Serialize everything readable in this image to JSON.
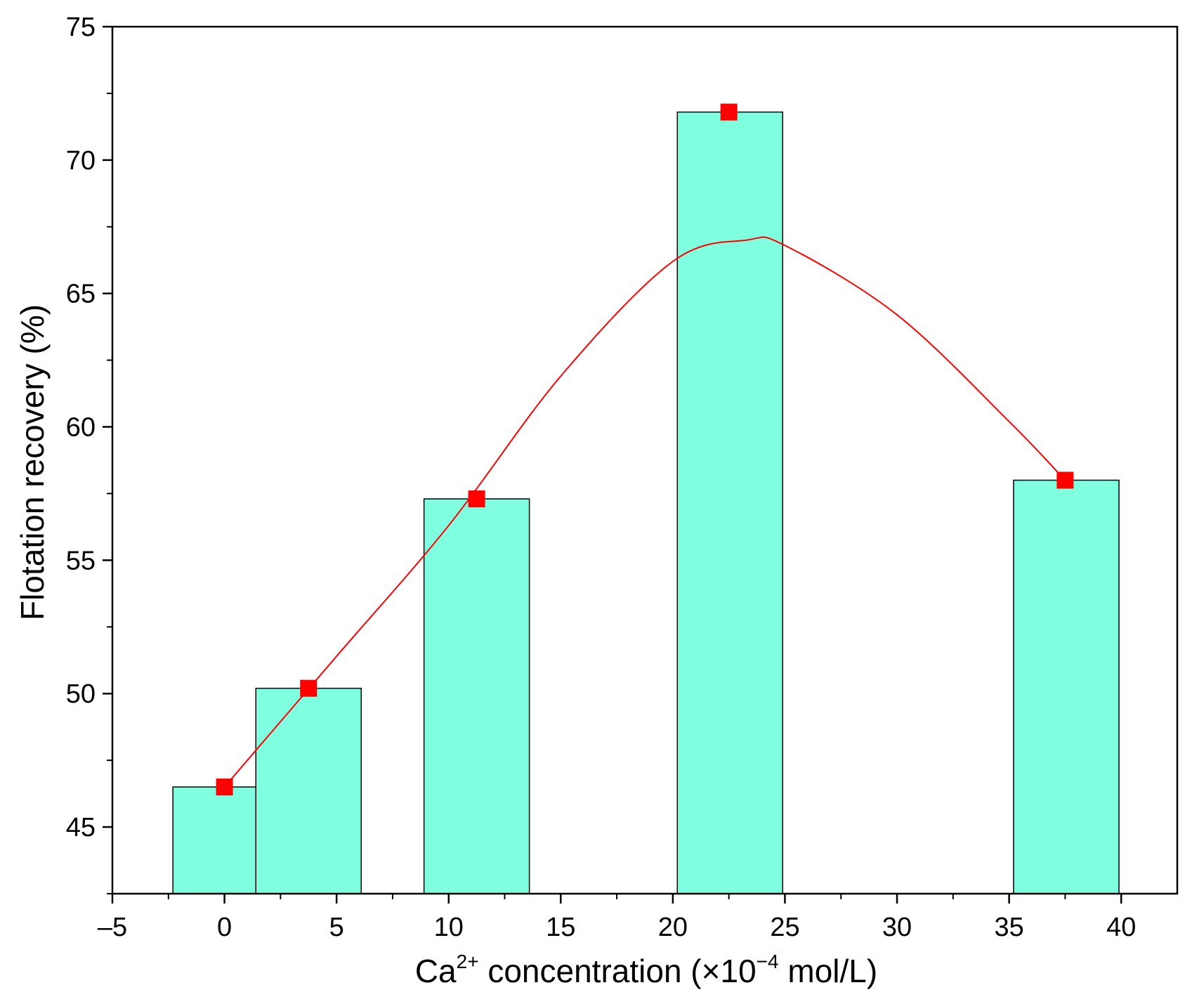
{
  "chart_data": {
    "type": "bar",
    "title": "",
    "xlabel": {
      "prefix": "Ca",
      "prefix_sup": "2+",
      "middle": " concentration (×10",
      "middle_sup": "−4",
      "suffix": " mol/L)"
    },
    "ylabel": "Flotation recovery (%)",
    "xlim": [
      -5,
      42.5
    ],
    "ylim": [
      42.5,
      75
    ],
    "xticks": [
      -5,
      0,
      5,
      10,
      15,
      20,
      25,
      30,
      35,
      40
    ],
    "xtick_labels": [
      "–5",
      "0",
      "5",
      "10",
      "15",
      "20",
      "25",
      "30",
      "35",
      "40"
    ],
    "yticks": [
      45,
      50,
      55,
      60,
      65,
      70,
      75
    ],
    "ytick_labels": [
      "45",
      "50",
      "55",
      "60",
      "65",
      "70",
      "75"
    ],
    "grid": false,
    "bars": [
      {
        "x_start": -2.3,
        "x_end": 1.4,
        "value": 46.5
      },
      {
        "x_start": 1.4,
        "x_end": 6.1,
        "value": 50.2
      },
      {
        "x_start": 8.9,
        "x_end": 13.6,
        "value": 57.3
      },
      {
        "x_start": 20.2,
        "x_end": 24.9,
        "value": 71.8
      },
      {
        "x_start": 35.2,
        "x_end": 39.9,
        "value": 58.0
      }
    ],
    "series": [
      {
        "name": "Flotation recovery",
        "x": [
          0,
          3.75,
          11.25,
          22.5,
          37.5
        ],
        "values": [
          46.5,
          50.2,
          57.3,
          71.8,
          58.0
        ]
      }
    ],
    "fit_curve": {
      "x": [
        0,
        5,
        10,
        15,
        20,
        23.3,
        25,
        30,
        35,
        37.5
      ],
      "values": [
        46.5,
        51.4,
        56.3,
        61.9,
        66.2,
        67.0,
        66.8,
        64.2,
        60.2,
        58.0
      ]
    },
    "colors": {
      "bar_fill": "#7fffe0",
      "bar_stroke": "#000000",
      "marker": "#ff0000",
      "curve": "#ff0000",
      "axis": "#000000"
    }
  }
}
